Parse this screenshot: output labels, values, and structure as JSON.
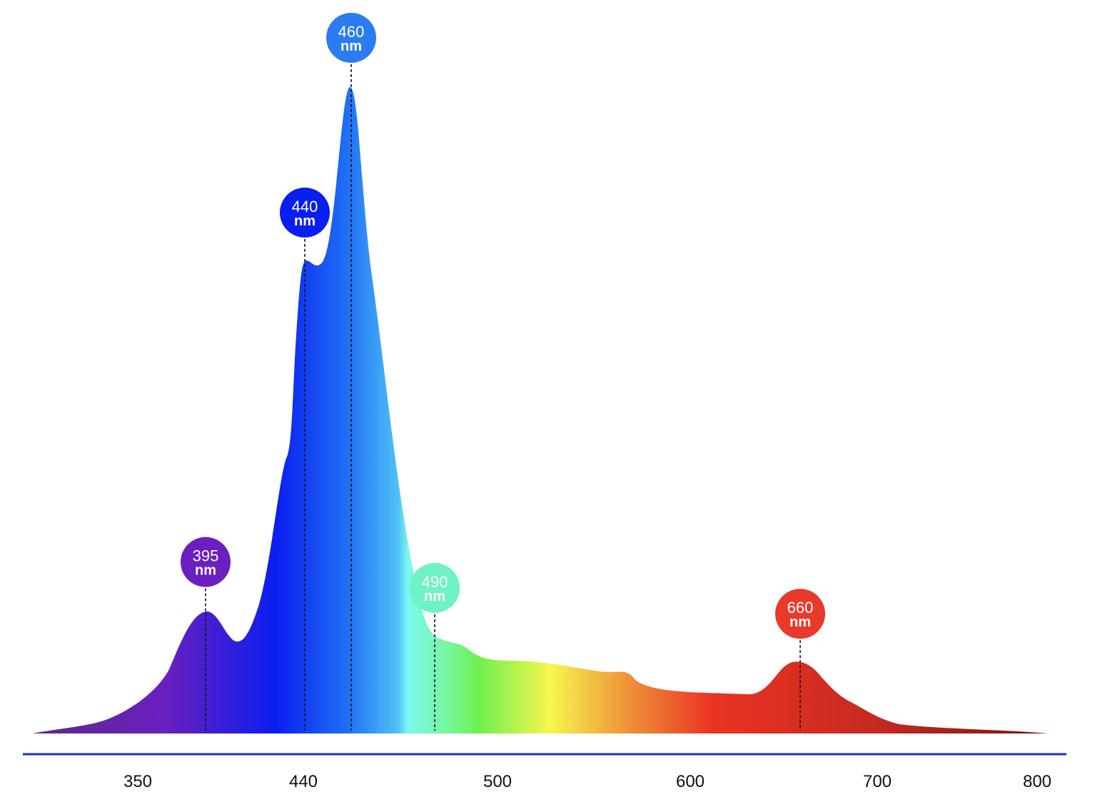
{
  "chart_data": {
    "type": "area",
    "title": "",
    "xlabel": "",
    "ylabel": "",
    "grid": false,
    "legend": "none",
    "x_ticks": [
      "350",
      "440",
      "500",
      "600",
      "700",
      "800"
    ],
    "spectrum_gradient": [
      "#5e2a86",
      "#6a1fbf",
      "#0a1ef0",
      "#1f6ff5",
      "#4fc0f5",
      "#7cf7ee",
      "#77f79a",
      "#6ef04e",
      "#f7f74e",
      "#ef9a3a",
      "#ea3323",
      "#c62a22",
      "#7a1410"
    ],
    "axis_color": "#1a2bd8",
    "peaks": [
      {
        "value": "395",
        "unit": "nm",
        "color": "#6b1fbf",
        "relative_intensity": 0.19
      },
      {
        "value": "440",
        "unit": "nm",
        "color": "#0a1ef0",
        "relative_intensity": 0.73
      },
      {
        "value": "460",
        "unit": "nm",
        "color": "#2b7cf0",
        "relative_intensity": 1.0
      },
      {
        "value": "490",
        "unit": "nm",
        "color": "#6ff2c6",
        "relative_intensity": 0.15
      },
      {
        "value": "660",
        "unit": "nm",
        "color": "#e83a2a",
        "relative_intensity": 0.11
      }
    ]
  }
}
